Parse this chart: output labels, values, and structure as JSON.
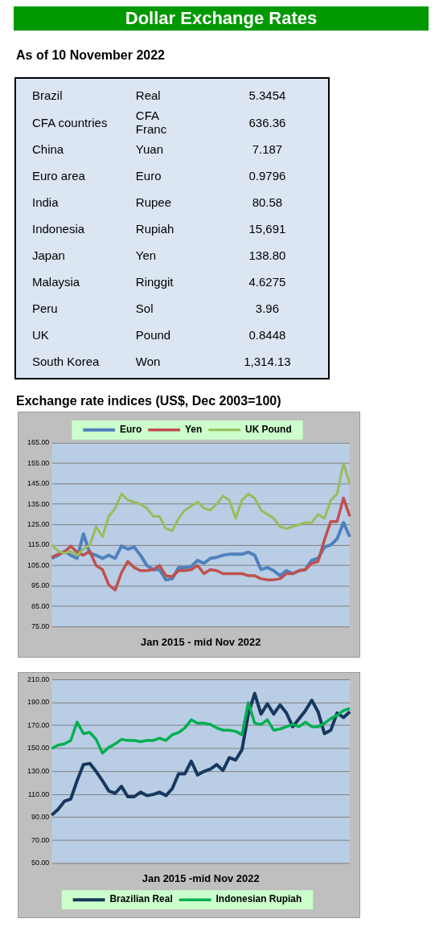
{
  "chart_data": [
    {
      "type": "other",
      "title": "Dollar Exchange Rates",
      "subtitle": "As of 10 November 2022",
      "cell_labels": [
        [
          "Brazil",
          "Real",
          "5.3454"
        ],
        [
          "CFA countries",
          "CFA Franc",
          "636.36"
        ],
        [
          "China",
          "Yuan",
          "7.187"
        ],
        [
          "Euro area",
          "Euro",
          "0.9796"
        ],
        [
          "India",
          "Rupee",
          "80.58"
        ],
        [
          "Indonesia",
          "Rupiah",
          "15,691"
        ],
        [
          "Japan",
          "Yen",
          "138.80"
        ],
        [
          "Malaysia",
          "Ringgit",
          "4.6275"
        ],
        [
          "Peru",
          "Sol",
          "3.96"
        ],
        [
          "UK",
          "Pound",
          "0.8448"
        ],
        [
          "South Korea",
          "Won",
          "1,314.13"
        ]
      ]
    },
    {
      "type": "line",
      "title": "Exchange rate indices (US$, Dec 2003=100)",
      "xlabel": "Jan 2015 - mid Nov 2022",
      "categories": [
        null,
        null,
        null,
        null,
        null,
        null,
        null,
        null,
        null,
        null,
        null,
        null,
        null,
        null,
        null,
        null,
        null,
        null,
        null,
        null,
        null,
        null,
        null,
        null,
        null,
        null,
        null,
        null,
        null,
        null,
        null,
        null,
        null,
        null,
        null,
        null,
        null,
        null,
        null,
        null,
        null,
        null,
        null,
        null,
        null,
        null,
        null,
        null
      ],
      "series": [
        {
          "name": "Euro",
          "color": "#4f81bd",
          "values": [
            108.5,
            110,
            112,
            110,
            108.5,
            120.5,
            111,
            110,
            108.5,
            110,
            108.5,
            114.5,
            113,
            114,
            110,
            105,
            103,
            103,
            98,
            98.5,
            104,
            104,
            104.5,
            107.5,
            106,
            108.5,
            109,
            110,
            110.5,
            110.5,
            110.5,
            111.5,
            110,
            103,
            104,
            102.5,
            100,
            102.5,
            101,
            102.5,
            103,
            107.5,
            108.5,
            114,
            115,
            118,
            126,
            119
          ]
        },
        {
          "name": "Yen",
          "color": "#c0504d",
          "values": [
            109,
            110.5,
            111.5,
            114.5,
            111.5,
            110,
            112,
            105,
            103,
            95.5,
            93,
            101.5,
            107,
            104,
            102.5,
            102.5,
            103,
            105,
            100,
            99.5,
            102.5,
            102.5,
            103,
            105,
            101,
            103,
            102.5,
            101,
            101,
            101,
            101,
            100,
            100,
            98.5,
            98,
            98,
            98.5,
            101,
            101,
            102.5,
            103,
            106,
            107,
            117.5,
            126.5,
            126.5,
            138,
            129
          ]
        },
        {
          "name": "UK Pound",
          "color": "#9bbb59",
          "values": [
            115,
            112,
            111,
            112,
            110,
            113,
            115,
            124,
            119,
            129,
            133,
            140,
            137,
            136,
            135,
            133,
            129,
            129,
            123,
            122,
            128,
            132,
            134,
            136,
            133,
            132,
            135,
            139,
            137,
            128,
            137,
            140,
            138,
            132,
            130,
            128,
            124,
            123,
            124,
            125,
            126,
            126,
            130,
            128,
            137,
            140,
            155,
            145
          ]
        }
      ],
      "ylim": [
        75,
        165
      ],
      "yticks": [
        {
          "value": 75,
          "label": "75.00"
        },
        {
          "value": 85,
          "label": "85.00"
        },
        {
          "value": 95,
          "label": "95.00"
        },
        {
          "value": 105,
          "label": "105.00"
        },
        {
          "value": 115,
          "label": "115.00"
        },
        {
          "value": 125,
          "label": "125.00"
        },
        {
          "value": 135,
          "label": "135.00"
        },
        {
          "value": 145,
          "label": "145.00"
        },
        {
          "value": 155,
          "label": "155.00"
        },
        {
          "value": 165,
          "label": "165.00"
        }
      ],
      "grid": "y",
      "legend": "top",
      "tick_labels": "y"
    },
    {
      "type": "line",
      "xlabel": "Jan 2015 -mid Nov 2022",
      "categories": [
        null,
        null,
        null,
        null,
        null,
        null,
        null,
        null,
        null,
        null,
        null,
        null,
        null,
        null,
        null,
        null,
        null,
        null,
        null,
        null,
        null,
        null,
        null,
        null,
        null,
        null,
        null,
        null,
        null,
        null,
        null,
        null,
        null,
        null,
        null,
        null,
        null,
        null,
        null,
        null,
        null,
        null,
        null,
        null,
        null,
        null,
        null,
        null
      ],
      "series": [
        {
          "name": "Brazilian Real",
          "color": "#17375e",
          "values": [
            92,
            97,
            104,
            106,
            122,
            136,
            137,
            130,
            122,
            113,
            111,
            117,
            108,
            108,
            112,
            109,
            110,
            112,
            109,
            115,
            128,
            128,
            139,
            127,
            130,
            132,
            136,
            131,
            142,
            140,
            149,
            180,
            198,
            180,
            189,
            180,
            188,
            181,
            169,
            176,
            183,
            192,
            182,
            163,
            166,
            181,
            177,
            182
          ]
        },
        {
          "name": "Indonesian Rupiah",
          "color": "#00b050",
          "values": [
            150,
            153,
            154,
            157,
            173,
            163,
            164,
            158,
            146,
            151,
            154,
            158,
            157,
            157,
            156,
            157,
            157,
            159,
            157,
            162,
            164,
            168,
            175,
            172,
            172,
            171,
            168,
            166,
            166,
            165,
            162,
            190,
            172,
            171,
            175,
            166,
            167,
            169,
            171,
            169,
            173,
            169,
            169,
            172,
            176,
            179,
            183,
            185
          ]
        }
      ],
      "ylim": [
        50,
        210
      ],
      "yticks": [
        {
          "value": 50,
          "label": "50.00"
        },
        {
          "value": 70,
          "label": "70.00"
        },
        {
          "value": 90,
          "label": "90.00"
        },
        {
          "value": 110,
          "label": "110.00"
        },
        {
          "value": 130,
          "label": "130.00"
        },
        {
          "value": 150,
          "label": "150.00"
        },
        {
          "value": 170,
          "label": "170.00"
        },
        {
          "value": 190,
          "label": "190.00"
        },
        {
          "value": 210,
          "label": "210.00"
        }
      ],
      "grid": "y",
      "legend": "bottom",
      "tick_labels": "y"
    }
  ]
}
